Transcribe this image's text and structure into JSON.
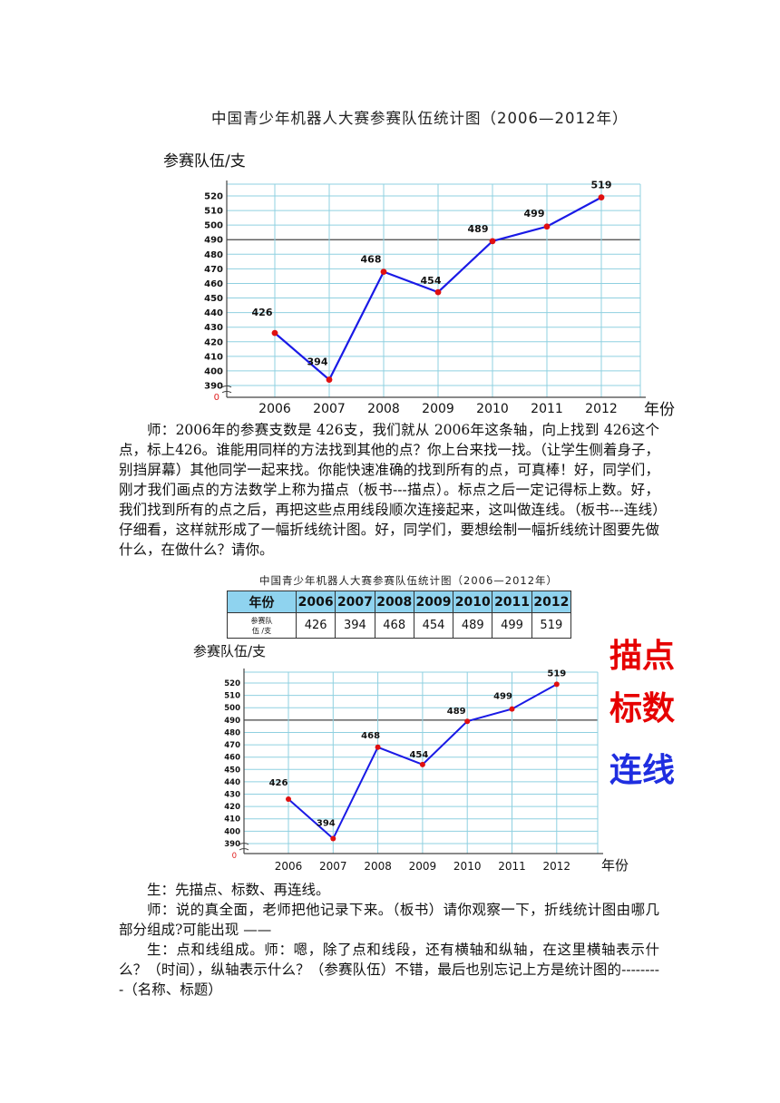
{
  "chart_data": [
    {
      "type": "line",
      "title": "中国青少年机器人大赛参赛队伍统计图（2006—2012年）",
      "ylabel": "参赛队伍/支",
      "xlabel": "年份",
      "x": [
        "2006",
        "2007",
        "2008",
        "2009",
        "2010",
        "2011",
        "2012"
      ],
      "series": [
        {
          "values": [
            426,
            394,
            468,
            454,
            489,
            499,
            519
          ]
        }
      ],
      "yticks": [
        390,
        400,
        410,
        420,
        430,
        440,
        450,
        460,
        470,
        480,
        490,
        500,
        510,
        520
      ],
      "yorigin_label": "0",
      "ylim": [
        390,
        520
      ],
      "grid": true,
      "line_color": "#1a1ae6",
      "point_color": "#e01010"
    },
    {
      "type": "line",
      "ylabel": "参赛队伍/支",
      "xlabel": "年份",
      "x": [
        "2006",
        "2007",
        "2008",
        "2009",
        "2010",
        "2011",
        "2012"
      ],
      "series": [
        {
          "values": [
            426,
            394,
            468,
            454,
            489,
            499,
            519
          ]
        }
      ],
      "yticks": [
        390,
        400,
        410,
        420,
        430,
        440,
        450,
        460,
        470,
        480,
        490,
        500,
        510,
        520
      ],
      "yorigin_label": "0",
      "ylim": [
        390,
        520
      ],
      "grid": true,
      "line_color": "#1a1ae6",
      "point_color": "#e01010"
    }
  ],
  "text": {
    "para1": [
      "师：2006年的参赛支数是 426支，我们就从 2006年这条轴，向上找到 426这个点，标上426。谁能用同样的方法找到其他的点？你上台来找一找。（让学生侧着身子，别挡屏幕）其他同学一起来找。你能快速准确的找到所有的点，可真棒！好，同学们，刚才我们画点的方法数学上称为描点（板书---描点）。标点之后一定记得标上数。好，我们找到所有的点之后，再把这些点用线段顺次连接起来，这叫做连线。（板书---连线）仔细看，这样就形成了一幅折线统计图。好，同学们，要想绘制一幅折线统计图要先做什么，在做什么？请你。"
    ],
    "para2": "生：先描点、标数、再连线。",
    "para3": "师：说的真全面，老师把他记录下来。（板书）请你观察一下，折线统计图由哪几部分组成?可能出现 ——",
    "para4": "生：点和线组成。师：嗯，除了点和线段，还有横轴和纵轴，在这里横轴表示什么？（时间），纵轴表示什么？（参赛队伍）不错，最后也别忘记上方是统计图的---------（名称、标题）"
  },
  "table": {
    "title": "中国青少年机器人大赛参赛队伍统计图（2006—2012年）",
    "header_label": "年份",
    "years": [
      "2006",
      "2007",
      "2008",
      "2009",
      "2010",
      "2011",
      "2012"
    ],
    "row_label_line1": "参赛队",
    "row_label_line2": "伍 /支",
    "values": [
      "426",
      "394",
      "468",
      "454",
      "489",
      "499",
      "519"
    ]
  },
  "sidebar_words": [
    {
      "text": "描点",
      "color": "#e60000"
    },
    {
      "text": "标数",
      "color": "#e60000"
    },
    {
      "text": "连线",
      "color": "#1f2ee0"
    }
  ]
}
